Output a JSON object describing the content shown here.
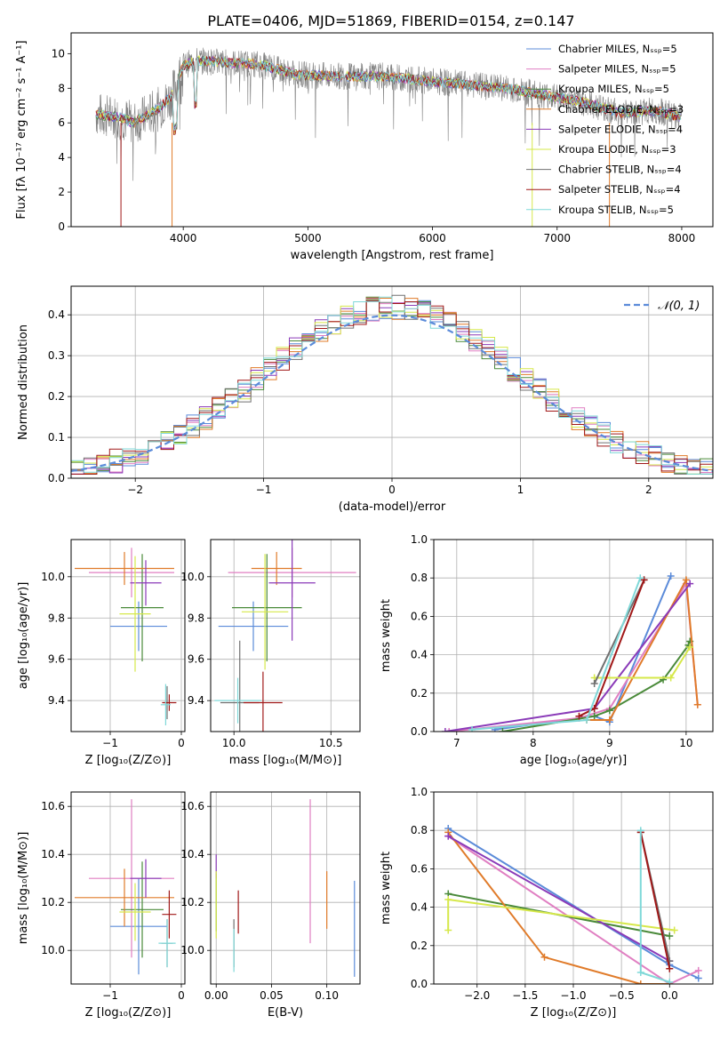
{
  "figure": {
    "title": "PLATE=0406, MJD=51869, FIBERID=0154, z=0.147"
  },
  "colors": {
    "Chabrier MILES": "#5b8bd9",
    "Salpeter MILES": "#e07fc2",
    "Kroupa MILES": "#4a8a3a",
    "Chabrier ELODIE": "#e07b2a",
    "Salpeter ELODIE": "#8a3ab8",
    "Kroupa ELODIE": "#d6e84a",
    "Chabrier STELIB": "#707070",
    "Salpeter STELIB": "#a01818",
    "Kroupa STELIB": "#7fd8d8",
    "gaussian": "#5b8bd9"
  },
  "chart_data": [
    {
      "id": "spectrum",
      "type": "line",
      "xlabel": "wavelength [Angstrom, rest frame]",
      "ylabel": "Flux [fλ 10⁻¹⁷ erg cm⁻² s⁻¹ A⁻¹]",
      "xlim": [
        3100,
        8250
      ],
      "ylim": [
        0,
        11.2
      ],
      "xticks": [
        4000,
        5000,
        6000,
        7000,
        8000
      ],
      "yticks": [
        0,
        2,
        4,
        6,
        8,
        10
      ],
      "grid": false,
      "legend_position": "right",
      "continuum": {
        "x": [
          3300,
          3500,
          3600,
          3800,
          3900,
          4000,
          4100,
          4300,
          4600,
          4900,
          5200,
          5600,
          6000,
          6300,
          6600,
          6900,
          7200,
          7500,
          7800,
          8000
        ],
        "y": [
          6.5,
          6.3,
          6.0,
          6.8,
          7.5,
          9.3,
          9.6,
          9.5,
          9.4,
          8.8,
          8.7,
          8.7,
          8.4,
          8.2,
          8.0,
          7.6,
          7.2,
          6.6,
          6.7,
          6.3
        ]
      },
      "series": [
        {
          "name": "Chabrier MILES",
          "nssp": 5,
          "color": "#5b8bd9"
        },
        {
          "name": "Salpeter MILES",
          "nssp": 5,
          "color": "#e07fc2"
        },
        {
          "name": "Kroupa MILES",
          "nssp": 5,
          "color": "#4a8a3a"
        },
        {
          "name": "Chabrier ELODIE",
          "nssp": 3,
          "color": "#e07b2a"
        },
        {
          "name": "Salpeter ELODIE",
          "nssp": 4,
          "color": "#8a3ab8"
        },
        {
          "name": "Kroupa ELODIE",
          "nssp": 3,
          "color": "#d6e84a"
        },
        {
          "name": "Chabrier STELIB",
          "nssp": 4,
          "color": "#707070"
        },
        {
          "name": "Salpeter STELIB",
          "nssp": 4,
          "color": "#a01818"
        },
        {
          "name": "Kroupa STELIB",
          "nssp": 5,
          "color": "#7fd8d8"
        }
      ],
      "legend_labels": [
        "Chabrier MILES, Nₛₛₚ=5",
        "Salpeter MILES, Nₛₛₚ=5",
        "Kroupa MILES, Nₛₛₚ=5",
        "Chabrier ELODIE, Nₛₛₚ=3",
        "Salpeter ELODIE, Nₛₛₚ=4",
        "Kroupa ELODIE, Nₛₛₚ=3",
        "Chabrier STELIB, Nₛₛₚ=4",
        "Salpeter STELIB, Nₛₛₚ=4",
        "Kroupa STELIB, Nₛₛₚ=5"
      ]
    },
    {
      "id": "residuals",
      "type": "line",
      "xlabel": "(data-model)/error",
      "ylabel": "Normed distribution",
      "xlim": [
        -2.5,
        2.5
      ],
      "ylim": [
        0,
        0.47
      ],
      "xticks": [
        -2,
        -1,
        0,
        1,
        2
      ],
      "yticks": [
        0.0,
        0.1,
        0.2,
        0.3,
        0.4
      ],
      "grid": true,
      "legend_position": "top-right",
      "legend_label": "𝒩(0, 1)",
      "gaussian": {
        "mean": 0,
        "sigma": 1
      }
    },
    {
      "id": "age-vs-Z",
      "type": "scatter",
      "xlabel": "Z [log₁₀(Z/Z⊙)]",
      "ylabel": "age  [log₁₀(age/yr)]",
      "xlim": [
        -1.55,
        0.05
      ],
      "ylim": [
        9.25,
        10.18
      ],
      "xticks": [
        -1,
        0
      ],
      "yticks": [
        9.4,
        9.6,
        9.8,
        10.0
      ],
      "points": [
        {
          "series": "Chabrier MILES",
          "x": -0.6,
          "y": 9.76,
          "xerr": 0.4,
          "yerr": 0.12
        },
        {
          "series": "Salpeter MILES",
          "x": -0.7,
          "y": 10.02,
          "xerr": 0.6,
          "yerr": 0.12
        },
        {
          "series": "Kroupa MILES",
          "x": -0.55,
          "y": 9.85,
          "xerr": 0.3,
          "yerr": 0.26
        },
        {
          "series": "Chabrier ELODIE",
          "x": -0.8,
          "y": 10.04,
          "xerr": 0.7,
          "yerr": 0.08
        },
        {
          "series": "Salpeter ELODIE",
          "x": -0.5,
          "y": 9.97,
          "xerr": 0.22,
          "yerr": 0.11
        },
        {
          "series": "Kroupa ELODIE",
          "x": -0.65,
          "y": 9.82,
          "xerr": 0.22,
          "yerr": 0.28
        },
        {
          "series": "Chabrier STELIB",
          "x": -0.2,
          "y": 9.39,
          "xerr": 0.05,
          "yerr": 0.08
        },
        {
          "series": "Salpeter STELIB",
          "x": -0.17,
          "y": 9.39,
          "xerr": 0.1,
          "yerr": 0.04
        },
        {
          "series": "Kroupa STELIB",
          "x": -0.22,
          "y": 9.38,
          "xerr": 0.07,
          "yerr": 0.1
        }
      ]
    },
    {
      "id": "age-vs-mass",
      "type": "scatter",
      "xlabel": "mass [log₁₀(M/M⊙)]",
      "ylabel": "",
      "xlim": [
        9.88,
        10.65
      ],
      "ylim": [
        9.25,
        10.18
      ],
      "xticks": [
        10.0,
        10.5
      ],
      "yticks": [
        9.4,
        9.6,
        9.8,
        10.0
      ],
      "points": [
        {
          "series": "Chabrier MILES",
          "x": 10.1,
          "y": 9.76,
          "xerr": 0.18,
          "yerr": 0.12
        },
        {
          "series": "Salpeter MILES",
          "x": 10.3,
          "y": 10.02,
          "xerr": 0.33,
          "yerr": 0.12
        },
        {
          "series": "Kroupa MILES",
          "x": 10.17,
          "y": 9.85,
          "xerr": 0.18,
          "yerr": 0.26
        },
        {
          "series": "Chabrier ELODIE",
          "x": 10.22,
          "y": 10.04,
          "xerr": 0.13,
          "yerr": 0.08
        },
        {
          "series": "Salpeter ELODIE",
          "x": 10.3,
          "y": 9.97,
          "xerr": 0.12,
          "yerr": 0.28
        },
        {
          "series": "Kroupa ELODIE",
          "x": 10.16,
          "y": 9.83,
          "xerr": 0.12,
          "yerr": 0.28
        },
        {
          "series": "Chabrier STELIB",
          "x": 10.03,
          "y": 9.39,
          "xerr": 0.1,
          "yerr": 0.3
        },
        {
          "series": "Salpeter STELIB",
          "x": 10.15,
          "y": 9.39,
          "xerr": 0.1,
          "yerr": 0.15
        },
        {
          "series": "Kroupa STELIB",
          "x": 10.02,
          "y": 9.4,
          "xerr": 0.12,
          "yerr": 0.11
        }
      ]
    },
    {
      "id": "weight-vs-age",
      "type": "line",
      "xlabel": "age  [log₁₀(age/yr)]",
      "ylabel": "mass weight",
      "xlim": [
        6.7,
        10.35
      ],
      "ylim": [
        0,
        1.0
      ],
      "xticks": [
        7,
        8,
        9,
        10
      ],
      "yticks": [
        0.0,
        0.2,
        0.4,
        0.6,
        0.8,
        1.0
      ],
      "grid": true,
      "series": [
        {
          "name": "Chabrier MILES",
          "x": [
            7.5,
            8.8,
            9.0,
            9.8
          ],
          "y": [
            0.01,
            0.08,
            0.05,
            0.81
          ]
        },
        {
          "name": "Salpeter MILES",
          "x": [
            6.9,
            8.6,
            9.0,
            10.0,
            10.15
          ],
          "y": [
            0.0,
            0.07,
            0.12,
            0.77,
            0.14
          ]
        },
        {
          "name": "Kroupa MILES",
          "x": [
            7.6,
            8.8,
            9.0,
            9.7,
            10.03,
            10.05
          ],
          "y": [
            0.0,
            0.08,
            0.11,
            0.27,
            0.45,
            0.47
          ]
        },
        {
          "name": "Chabrier ELODIE",
          "x": [
            8.7,
            9.0,
            10.0,
            10.15
          ],
          "y": [
            0.06,
            0.06,
            0.79,
            0.14
          ]
        },
        {
          "name": "Salpeter ELODIE",
          "x": [
            6.85,
            8.8,
            10.05
          ],
          "y": [
            0.0,
            0.12,
            0.77
          ]
        },
        {
          "name": "Kroupa ELODIE",
          "x": [
            8.8,
            9.8,
            10.05
          ],
          "y": [
            0.28,
            0.28,
            0.44
          ]
        },
        {
          "name": "Chabrier STELIB",
          "x": [
            8.8,
            9.45
          ],
          "y": [
            0.25,
            0.79
          ]
        },
        {
          "name": "Salpeter STELIB",
          "x": [
            8.6,
            8.8,
            9.45
          ],
          "y": [
            0.08,
            0.12,
            0.79
          ]
        },
        {
          "name": "Kroupa STELIB",
          "x": [
            7.2,
            8.7,
            9.4
          ],
          "y": [
            0.01,
            0.06,
            0.8
          ]
        }
      ]
    },
    {
      "id": "mass-vs-Z",
      "type": "scatter",
      "xlabel": "Z [log₁₀(Z/Z⊙)]",
      "ylabel": "mass [log₁₀(M/M⊙)]",
      "xlim": [
        -1.55,
        0.05
      ],
      "ylim": [
        9.86,
        10.66
      ],
      "xticks": [
        -1,
        0
      ],
      "yticks": [
        10.0,
        10.2,
        10.4,
        10.6
      ],
      "points": [
        {
          "series": "Chabrier MILES",
          "x": -0.6,
          "y": 10.1,
          "xerr": 0.4,
          "yerr": 0.2
        },
        {
          "series": "Salpeter MILES",
          "x": -0.7,
          "y": 10.3,
          "xerr": 0.6,
          "yerr": 0.33
        },
        {
          "series": "Kroupa MILES",
          "x": -0.55,
          "y": 10.17,
          "xerr": 0.3,
          "yerr": 0.2
        },
        {
          "series": "Chabrier ELODIE",
          "x": -0.8,
          "y": 10.22,
          "xerr": 0.7,
          "yerr": 0.12
        },
        {
          "series": "Salpeter ELODIE",
          "x": -0.5,
          "y": 10.3,
          "xerr": 0.22,
          "yerr": 0.08
        },
        {
          "series": "Kroupa ELODIE",
          "x": -0.65,
          "y": 10.16,
          "xerr": 0.22,
          "yerr": 0.12
        },
        {
          "series": "Chabrier STELIB",
          "x": -0.2,
          "y": 10.03,
          "xerr": 0.08,
          "yerr": 0.1
        },
        {
          "series": "Salpeter STELIB",
          "x": -0.17,
          "y": 10.15,
          "xerr": 0.1,
          "yerr": 0.1
        },
        {
          "series": "Kroupa STELIB",
          "x": -0.2,
          "y": 10.03,
          "xerr": 0.12,
          "yerr": 0.1
        }
      ]
    },
    {
      "id": "mass-vs-EBV",
      "type": "scatter",
      "xlabel": "E(B-V)",
      "ylabel": "",
      "xlim": [
        -0.005,
        0.13
      ],
      "ylim": [
        9.86,
        10.66
      ],
      "xticks": [
        0.0,
        0.05,
        0.1
      ],
      "yticks": [
        10.0,
        10.2,
        10.4,
        10.6
      ],
      "points": [
        {
          "series": "Chabrier MILES",
          "x": 0.125,
          "y": 10.09,
          "xerr": 0,
          "yerr": 0.2
        },
        {
          "series": "Salpeter MILES",
          "x": 0.085,
          "y": 10.33,
          "xerr": 0,
          "yerr": 0.3
        },
        {
          "series": "Kroupa MILES",
          "x": 0.0,
          "y": 10.2,
          "xerr": 0,
          "yerr": 0.12
        },
        {
          "series": "Chabrier ELODIE",
          "x": 0.1,
          "y": 10.21,
          "xerr": 0,
          "yerr": 0.12
        },
        {
          "series": "Salpeter ELODIE",
          "x": 0.0,
          "y": 10.35,
          "xerr": 0,
          "yerr": 0.05
        },
        {
          "series": "Kroupa ELODIE",
          "x": 0.0,
          "y": 10.19,
          "xerr": 0,
          "yerr": 0.14
        },
        {
          "series": "Chabrier STELIB",
          "x": 0.016,
          "y": 10.03,
          "xerr": 0,
          "yerr": 0.1
        },
        {
          "series": "Salpeter STELIB",
          "x": 0.02,
          "y": 10.16,
          "xerr": 0,
          "yerr": 0.09
        },
        {
          "series": "Kroupa STELIB",
          "x": 0.016,
          "y": 10.0,
          "xerr": 0,
          "yerr": 0.09
        }
      ]
    },
    {
      "id": "weight-vs-Z",
      "type": "line",
      "xlabel": "Z [log₁₀(Z/Z⊙)]",
      "ylabel": "mass weight",
      "xlim": [
        -2.45,
        0.45
      ],
      "ylim": [
        0,
        1.0
      ],
      "xticks": [
        -2.0,
        -1.5,
        -1.0,
        -0.5,
        0.0
      ],
      "yticks": [
        0.0,
        0.2,
        0.4,
        0.6,
        0.8,
        1.0
      ],
      "grid": true,
      "series": [
        {
          "name": "Chabrier MILES",
          "x": [
            -2.3,
            0.0,
            0.3
          ],
          "y": [
            0.81,
            0.1,
            0.03
          ]
        },
        {
          "name": "Salpeter MILES",
          "x": [
            -2.3,
            0.0,
            0.3
          ],
          "y": [
            0.77,
            0.0,
            0.07
          ]
        },
        {
          "name": "Kroupa MILES",
          "x": [
            -2.3,
            0.0
          ],
          "y": [
            0.47,
            0.25
          ]
        },
        {
          "name": "Chabrier ELODIE",
          "x": [
            -2.3,
            -1.3,
            -0.3,
            0.0
          ],
          "y": [
            0.79,
            0.14,
            0.0,
            0.0
          ]
        },
        {
          "name": "Salpeter ELODIE",
          "x": [
            -2.3,
            0.0
          ],
          "y": [
            0.77,
            0.12
          ]
        },
        {
          "name": "Kroupa ELODIE",
          "x": [
            -2.3,
            -2.3,
            0.05
          ],
          "y": [
            0.28,
            0.44,
            0.28
          ]
        },
        {
          "name": "Chabrier STELIB",
          "x": [
            -0.3,
            0.0
          ],
          "y": [
            0.79,
            0.12
          ]
        },
        {
          "name": "Salpeter STELIB",
          "x": [
            -0.3,
            0.0
          ],
          "y": [
            0.79,
            0.08
          ]
        },
        {
          "name": "Kroupa STELIB",
          "x": [
            -0.3,
            -0.3,
            0.0
          ],
          "y": [
            0.8,
            0.06,
            0.01
          ]
        }
      ]
    }
  ]
}
